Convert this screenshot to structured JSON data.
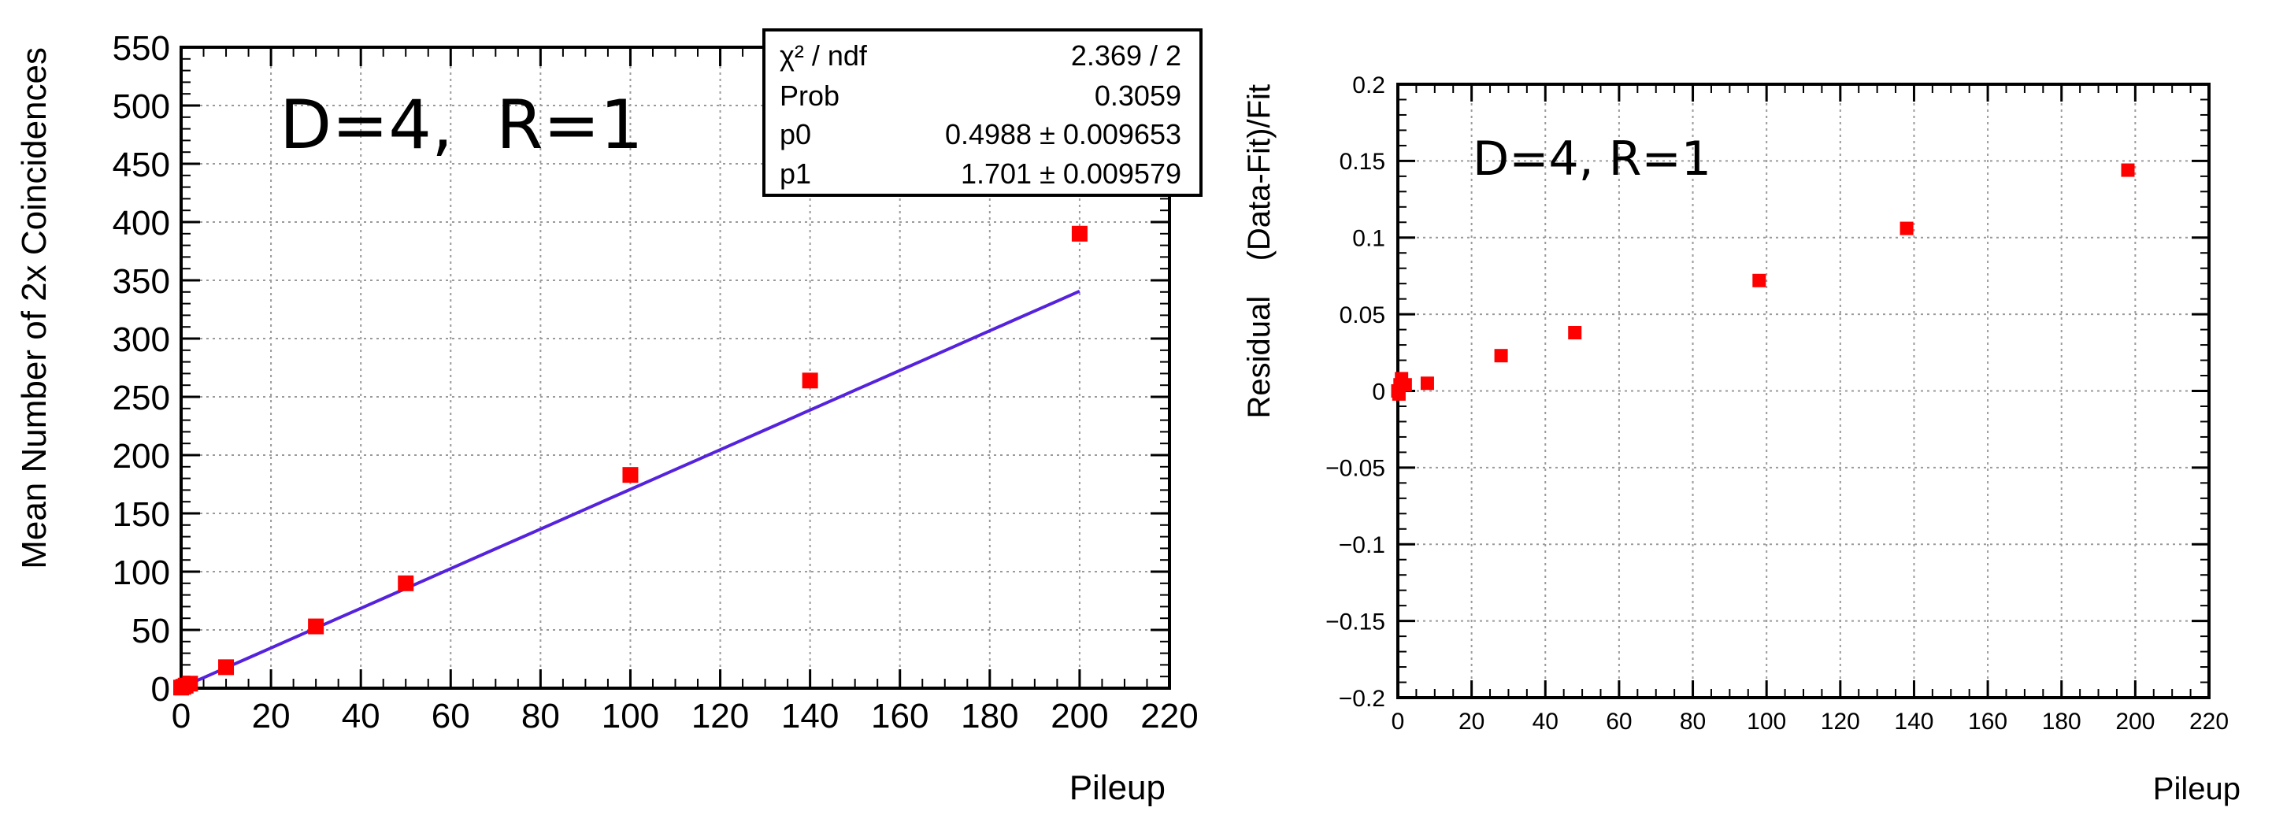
{
  "chart_data": [
    {
      "type": "scatter",
      "title": "",
      "annotation": "D=4,  R=1",
      "xlabel": "Pileup",
      "ylabel": "Mean Number of 2x Coincidences",
      "xlim": [
        0,
        220
      ],
      "ylim": [
        0,
        550
      ],
      "xticks": [
        "0",
        "20",
        "40",
        "60",
        "80",
        "100",
        "120",
        "140",
        "160",
        "180",
        "200",
        "220"
      ],
      "yticks": [
        "0",
        "50",
        "100",
        "150",
        "200",
        "250",
        "300",
        "350",
        "400",
        "450",
        "500",
        "550"
      ],
      "grid": true,
      "series": [
        {
          "points": [
            {
              "x": 0,
              "y": 0.5
            },
            {
              "x": 0.5,
              "y": 1.2
            },
            {
              "x": 1,
              "y": 2.2
            },
            {
              "x": 2,
              "y": 3.9
            },
            {
              "x": 10,
              "y": 18
            },
            {
              "x": 30,
              "y": 53
            },
            {
              "x": 50,
              "y": 90
            },
            {
              "x": 100,
              "y": 183
            },
            {
              "x": 140,
              "y": 264
            },
            {
              "x": 200,
              "y": 390
            }
          ],
          "color": "#ff0000"
        }
      ],
      "fit": {
        "p0": 0.4988,
        "p1": 1.701,
        "x_range": [
          0,
          200
        ],
        "color": "#5522dd"
      },
      "stats_box": {
        "rows": [
          {
            "label": "χ² / ndf",
            "value": "2.369 / 2"
          },
          {
            "label": "Prob",
            "value": "0.3059"
          },
          {
            "label": "p0",
            "value": "0.4988 ± 0.009653"
          },
          {
            "label": "p1",
            "value": "1.701 ± 0.009579"
          }
        ]
      }
    },
    {
      "type": "scatter",
      "title": "",
      "annotation": "D=4, R=1",
      "xlabel": "Pileup",
      "ylabel": "Residual    (Data-Fit)/Fit",
      "xlim": [
        0,
        220
      ],
      "ylim": [
        -0.2,
        0.2
      ],
      "xticks": [
        "0",
        "20",
        "40",
        "60",
        "80",
        "100",
        "120",
        "140",
        "160",
        "180",
        "200",
        "220"
      ],
      "yticks": [
        "−0.2",
        "−0.15",
        "−0.1",
        "−0.05",
        "0",
        "0.05",
        "0.1",
        "0.15",
        "0.2"
      ],
      "grid": true,
      "series": [
        {
          "points": [
            {
              "x": 0,
              "y": 0.0
            },
            {
              "x": 0.3,
              "y": -0.002
            },
            {
              "x": 0.6,
              "y": 0.004
            },
            {
              "x": 1,
              "y": 0.008
            },
            {
              "x": 2,
              "y": 0.004
            },
            {
              "x": 8,
              "y": 0.005
            },
            {
              "x": 28,
              "y": 0.023
            },
            {
              "x": 48,
              "y": 0.038
            },
            {
              "x": 98,
              "y": 0.072
            },
            {
              "x": 138,
              "y": 0.106
            },
            {
              "x": 198,
              "y": 0.144
            }
          ],
          "color": "#ff0000"
        }
      ]
    }
  ]
}
